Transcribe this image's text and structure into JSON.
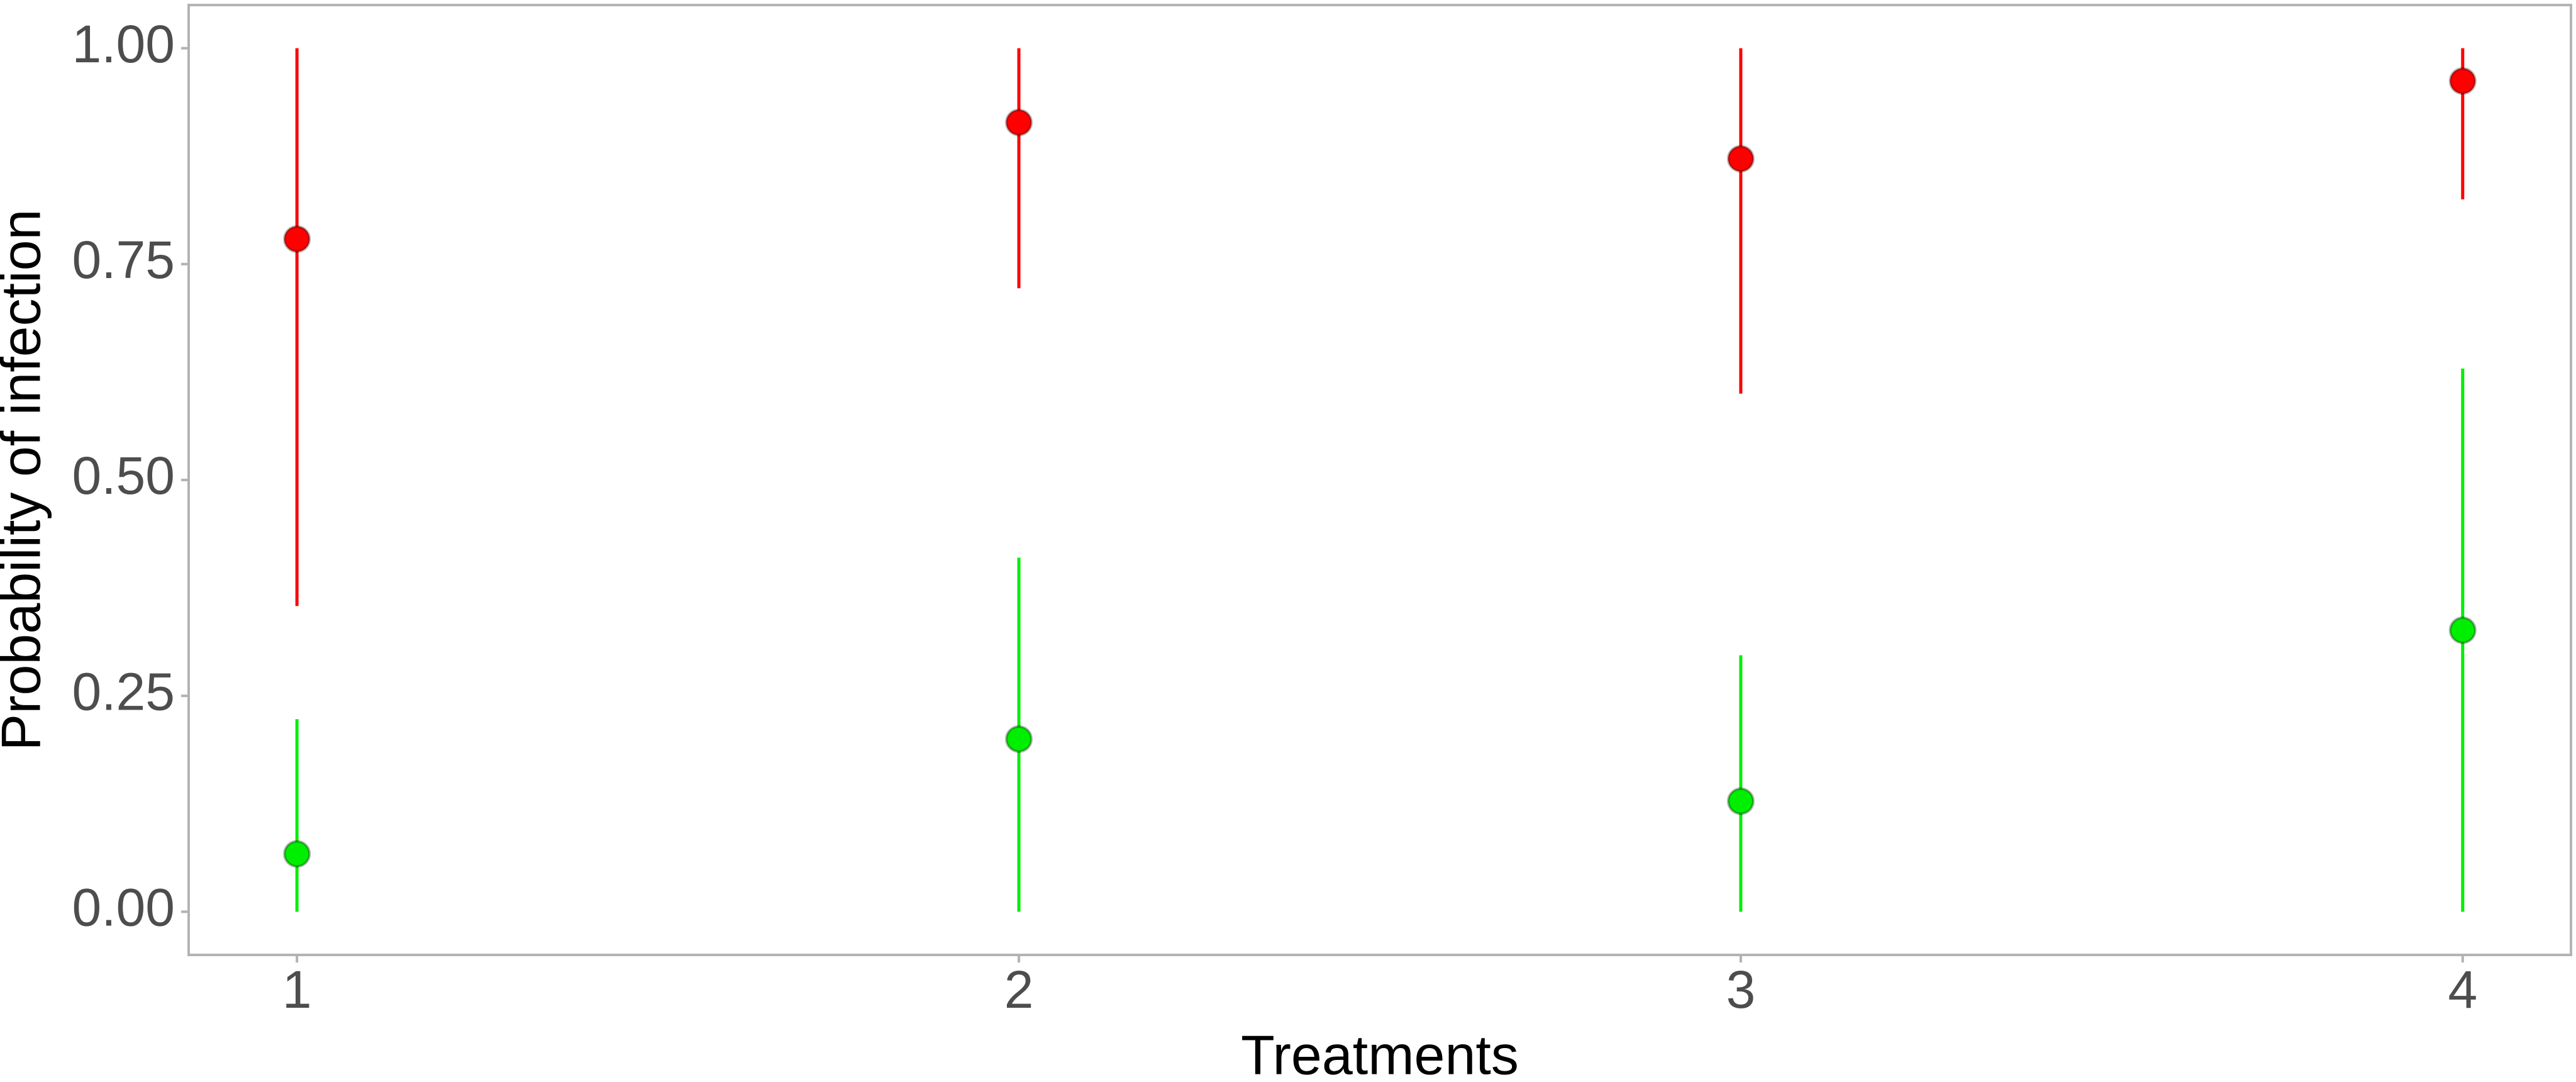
{
  "chart_data": {
    "type": "pointrange",
    "xlabel": "Treatments",
    "ylabel": "Probability of infection",
    "x": [
      1,
      2,
      3,
      4
    ],
    "series": [
      {
        "color": "#ff0000",
        "values": [
          0.779,
          0.914,
          0.872,
          0.962
        ],
        "lower": [
          0.354,
          0.722,
          0.6,
          0.825
        ],
        "upper": [
          1.0,
          1.0,
          1.0,
          1.0
        ]
      },
      {
        "color": "#00ee00",
        "values": [
          0.067,
          0.2,
          0.128,
          0.326
        ],
        "lower": [
          0.0,
          0.0,
          0.0,
          0.0
        ],
        "upper": [
          0.223,
          0.41,
          0.297,
          0.629
        ]
      }
    ],
    "xlim": [
      0.85,
      4.15
    ],
    "ylim": [
      -0.05,
      1.05
    ],
    "xticks": [
      1,
      2,
      3,
      4
    ],
    "yticks": [
      {
        "value": 0,
        "label": "0.00"
      },
      {
        "value": 0.25,
        "label": "0.25"
      },
      {
        "value": 0.5,
        "label": "0.50"
      },
      {
        "value": 0.75,
        "label": "0.75"
      },
      {
        "value": 1,
        "label": "1.00"
      }
    ],
    "grid": false
  }
}
